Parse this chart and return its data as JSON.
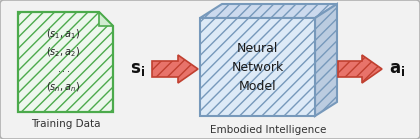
{
  "bg_color": "#e8e8e8",
  "outer_rect_edgecolor": "#b0b0b0",
  "outer_rect_fill": "#f2f2f2",
  "doc_border_color": "#4caa4c",
  "doc_fill_color": "#edf7ed",
  "doc_hatch": "///",
  "doc_hatch_color": "#90cc90",
  "cube_border_color": "#7799bb",
  "cube_front_fill": "#ddeaf7",
  "cube_top_fill": "#ccdaee",
  "cube_right_fill": "#bbcce0",
  "cube_hatch": "///",
  "arrow_fill_color": "#e8736a",
  "arrow_edge_color": "#c04030",
  "arrow_hatch": "///",
  "arrow_hatch_color": "#e0a090",
  "label_training": "Training Data",
  "label_embodied": "Embodied Intelligence",
  "label_neural": "Neural\nNetwork\nModel",
  "label_si": "$\\mathbf{s}_\\mathbf{i}$",
  "label_ai": "$\\mathbf{a}_\\mathbf{i}$",
  "doc_lines": [
    "$(s_1, a_1)$",
    "$(s_2, a_2)$",
    "$...$",
    "$(s_n, a_n)$"
  ],
  "fig_width": 4.2,
  "fig_height": 1.39
}
